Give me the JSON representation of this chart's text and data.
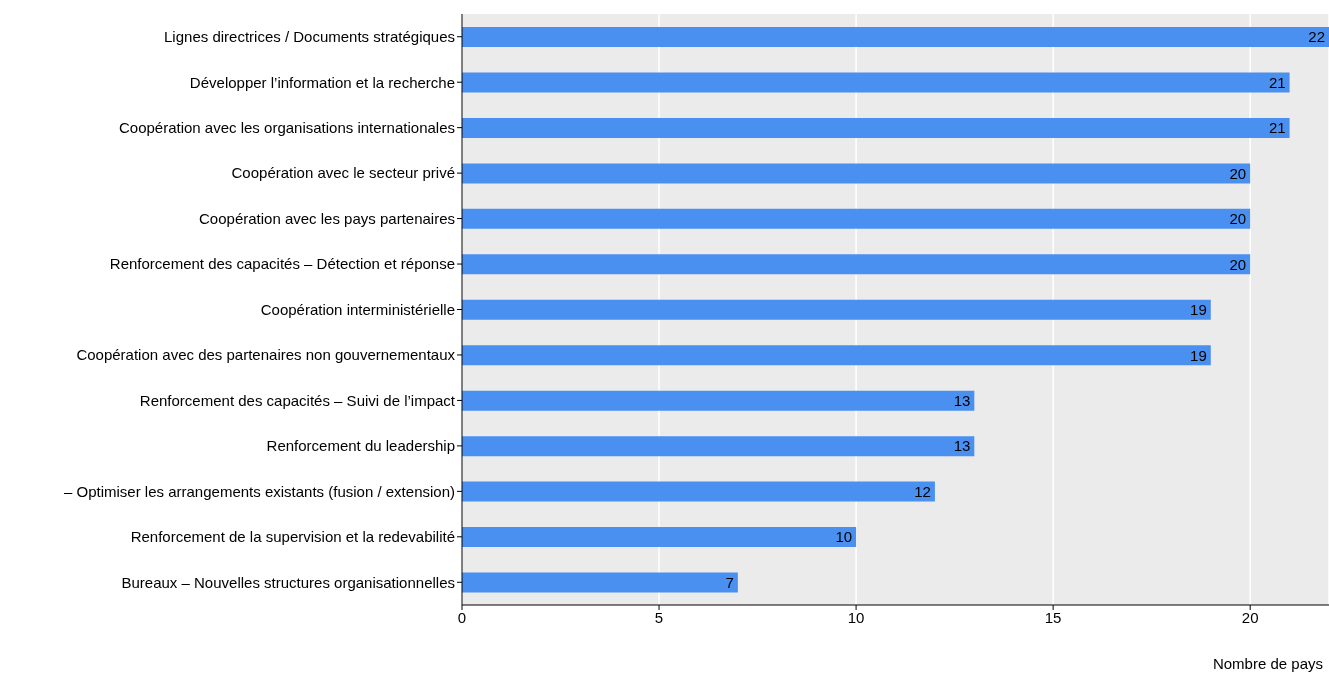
{
  "chart_data": {
    "type": "bar",
    "orientation": "horizontal",
    "xlabel": "Nombre de pays",
    "categories": [
      "Lignes directrices / Documents stratégiques",
      "Développer l’information et la recherche",
      "Coopération avec les organisations internationales",
      "Coopération avec le secteur privé",
      "Coopération avec les pays partenaires",
      "Renforcement des capacités – Détection et réponse",
      "Coopération interministérielle",
      "Coopération avec des partenaires non gouvernementaux",
      "Renforcement des capacités – Suivi de l’impact",
      "Renforcement du leadership",
      "– Optimiser les arrangements existants (fusion / extension)",
      "Renforcement de la supervision et la redevabilité",
      "Bureaux – Nouvelles structures organisationnelles"
    ],
    "values": [
      22,
      21,
      21,
      20,
      20,
      20,
      19,
      19,
      13,
      13,
      12,
      10,
      7
    ],
    "color": "#4a90f0",
    "xlim": [
      0,
      22
    ],
    "xticks": [
      0,
      5,
      10,
      15,
      20
    ],
    "grid": "x",
    "data_labels": true
  }
}
